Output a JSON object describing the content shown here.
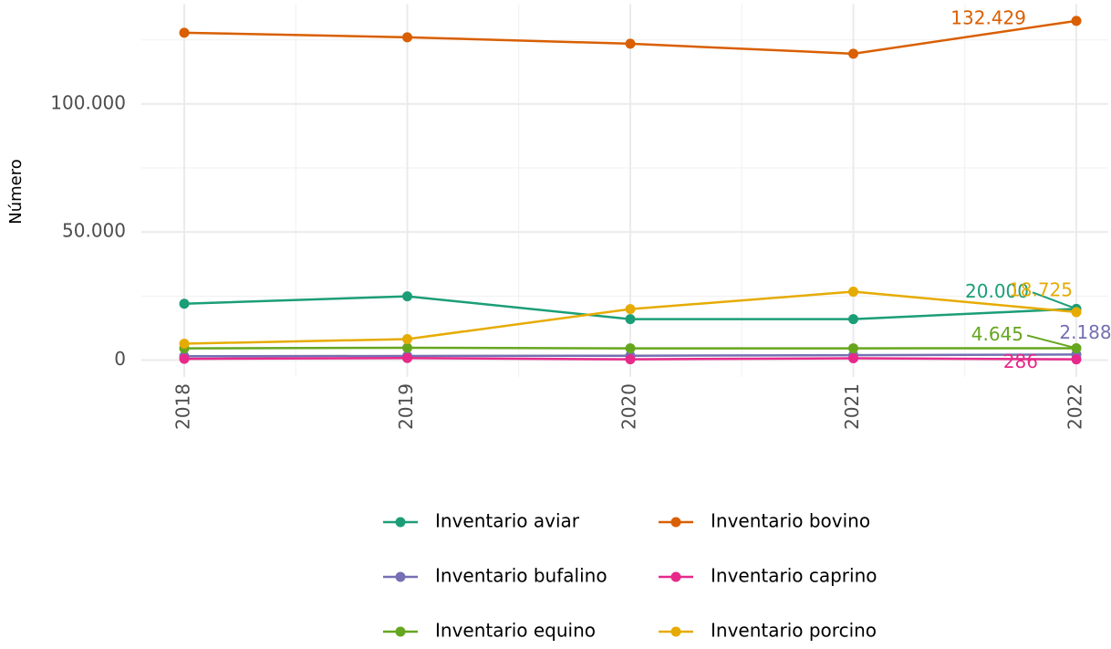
{
  "chart_data": {
    "type": "line",
    "y_label": "Número",
    "categories": [
      "2018",
      "2019",
      "2020",
      "2021",
      "2022"
    ],
    "ylim": [
      -6600,
      139000
    ],
    "yticks": [
      0,
      {
        "value": 50000,
        "label": "50.000"
      },
      {
        "value": 100000,
        "label": "100.000"
      }
    ],
    "yminor": [
      25000,
      75000,
      125000
    ],
    "grid": true,
    "legend": "bottom",
    "series": [
      {
        "name": "Inventario aviar",
        "color": "#1b9e77",
        "values": [
          22000,
          24900,
          16000,
          16000,
          20000
        ],
        "value_labels": [
          null,
          null,
          null,
          null,
          "20.000"
        ]
      },
      {
        "name": "Inventario bovino",
        "color": "#d95f02",
        "values": [
          127800,
          126000,
          123500,
          119600,
          132429
        ],
        "value_labels": [
          null,
          null,
          null,
          null,
          "132.429"
        ]
      },
      {
        "name": "Inventario bufalino",
        "color": "#7570b3",
        "values": [
          1500,
          1600,
          1700,
          1900,
          2188
        ],
        "value_labels": [
          null,
          null,
          null,
          null,
          "2.188"
        ]
      },
      {
        "name": "Inventario caprino",
        "color": "#e7298a",
        "values": [
          500,
          800,
          300,
          700,
          286
        ],
        "value_labels": [
          null,
          null,
          null,
          null,
          "286"
        ]
      },
      {
        "name": "Inventario equino",
        "color": "#66a61e",
        "values": [
          4600,
          4800,
          4600,
          4600,
          4645
        ],
        "value_labels": [
          null,
          null,
          null,
          null,
          "4.645"
        ]
      },
      {
        "name": "Inventario porcino",
        "color": "#e6ab02",
        "values": [
          6400,
          8200,
          19900,
          26700,
          18725
        ],
        "value_labels": [
          null,
          null,
          null,
          null,
          "18.725"
        ]
      }
    ]
  }
}
